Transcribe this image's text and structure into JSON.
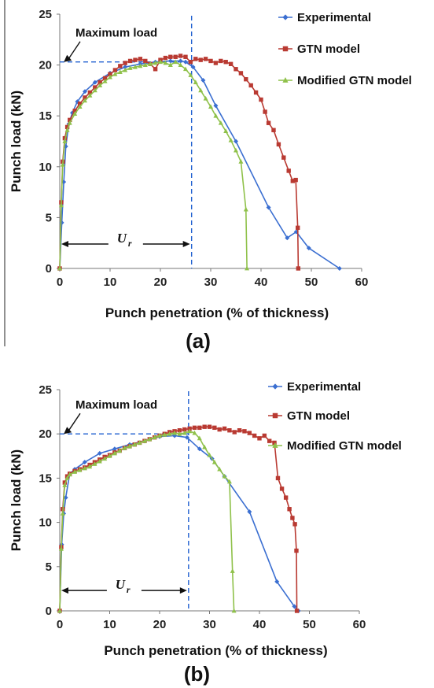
{
  "figure": {
    "left_rule_color": "#222222"
  },
  "chart_data": [
    {
      "type": "line",
      "panel_label": "(a)",
      "xlabel": "Punch penetration (% of thickness)",
      "ylabel": "Punch load (kN)",
      "xlim": [
        0,
        60
      ],
      "ylim": [
        0,
        25
      ],
      "xticks": [
        "0",
        "10",
        "20",
        "30",
        "40",
        "50",
        "60"
      ],
      "yticks": [
        "0",
        "5",
        "10",
        "15",
        "20",
        "25"
      ],
      "annotations": {
        "max_load": {
          "text": "Maximum load",
          "x": 0.5,
          "y": 20.3
        },
        "ur": {
          "symbol": "U",
          "subscript": "r",
          "x_start": 0,
          "x_end": 26.2,
          "y": 2.4
        },
        "guide": {
          "x": 26.2,
          "y": 20.3,
          "color": "#1f5fd0"
        }
      },
      "series": [
        {
          "name": "Experimental",
          "color": "#3b6fd1",
          "marker": "diamond",
          "x": [
            0,
            0.4,
            0.8,
            1.2,
            1.8,
            2.5,
            3.5,
            5,
            7,
            10,
            13,
            16,
            19,
            22,
            24,
            25,
            26.5,
            28.5,
            31,
            35,
            41.5,
            45.2,
            47,
            49.5,
            55.6
          ],
          "y": [
            0,
            4.5,
            8.5,
            12,
            14.2,
            15.3,
            16.4,
            17.4,
            18.3,
            19.2,
            19.8,
            20.1,
            20.3,
            20.4,
            20.4,
            20.3,
            19.8,
            18.5,
            16,
            12.5,
            6,
            3,
            3.6,
            2,
            0
          ]
        },
        {
          "name": "GTN model",
          "color": "#b93a32",
          "marker": "square",
          "x": [
            0,
            0.3,
            0.6,
            1,
            1.5,
            2,
            3,
            4,
            5,
            6,
            7,
            8,
            9,
            10,
            11,
            12,
            13,
            14,
            15,
            16,
            17,
            18,
            19,
            20,
            21,
            22,
            23,
            24,
            25,
            26,
            27,
            28,
            29,
            30,
            31,
            32,
            33,
            34,
            35,
            36,
            37,
            38,
            39,
            40,
            40.8,
            41.5,
            42.5,
            43.5,
            44.5,
            45.5,
            46.3,
            46.9,
            47.3,
            47.4
          ],
          "y": [
            0,
            6.5,
            10.5,
            12.8,
            13.9,
            14.6,
            15.5,
            16.2,
            16.8,
            17.3,
            17.8,
            18.3,
            18.7,
            19.1,
            19.5,
            19.9,
            20.2,
            20.4,
            20.5,
            20.6,
            20.4,
            20.1,
            19.6,
            20.5,
            20.7,
            20.8,
            20.8,
            20.9,
            20.8,
            20.3,
            20.6,
            20.5,
            20.6,
            20.4,
            20.2,
            20.4,
            20.3,
            20.1,
            19.6,
            19.2,
            18.6,
            18.0,
            17.3,
            16.6,
            15.4,
            14.3,
            13.6,
            12.2,
            10.9,
            9.6,
            8.6,
            8.7,
            4.0,
            0
          ]
        },
        {
          "name": "Modified GTN model",
          "color": "#8fc14a",
          "marker": "triangle",
          "x": [
            0,
            0.3,
            0.6,
            1,
            1.5,
            2,
            3,
            4,
            5,
            6,
            7,
            8,
            9,
            10,
            11,
            12,
            13,
            14,
            15,
            16,
            17,
            18,
            19,
            20,
            21,
            22,
            23,
            24,
            25,
            26,
            27,
            28,
            29,
            30,
            31,
            32,
            33,
            34,
            35,
            36,
            37,
            37.2
          ],
          "y": [
            0,
            6.2,
            10.2,
            12.5,
            13.6,
            14.3,
            15.2,
            15.9,
            16.5,
            17.0,
            17.5,
            18.0,
            18.4,
            18.8,
            19.1,
            19.3,
            19.5,
            19.7,
            19.8,
            19.9,
            20.0,
            20.1,
            20.2,
            20.3,
            20.2,
            20.0,
            20.3,
            20.0,
            19.6,
            19.0,
            18.3,
            17.5,
            16.7,
            15.9,
            15.0,
            14.3,
            13.5,
            12.6,
            11.6,
            10.5,
            5.8,
            0
          ]
        }
      ]
    },
    {
      "type": "line",
      "panel_label": "(b)",
      "xlabel": "Punch penetration (% of thickness)",
      "ylabel": "Punch load (kN)",
      "xlim": [
        0,
        60
      ],
      "ylim": [
        0,
        25
      ],
      "xticks": [
        "0",
        "10",
        "20",
        "30",
        "40",
        "50",
        "60"
      ],
      "yticks": [
        "0",
        "5",
        "10",
        "15",
        "20",
        "25"
      ],
      "annotations": {
        "max_load": {
          "text": "Maximum load",
          "x": 0.5,
          "y": 20.0
        },
        "ur": {
          "symbol": "U",
          "subscript": "r",
          "x_start": 0,
          "x_end": 25.8,
          "y": 2.3
        },
        "guide": {
          "x": 25.8,
          "y": 20.0,
          "color": "#1f5fd0"
        }
      },
      "series": [
        {
          "name": "Experimental",
          "color": "#3b6fd1",
          "marker": "diamond",
          "x": [
            0,
            0.4,
            0.8,
            1.2,
            2,
            3,
            5,
            8,
            11,
            14,
            17,
            20,
            23,
            25.5,
            28,
            30.5,
            33,
            38,
            43.5,
            47,
            47.8
          ],
          "y": [
            0,
            7.5,
            11,
            12.8,
            15.5,
            16,
            16.8,
            17.8,
            18.3,
            18.8,
            19.2,
            19.7,
            19.8,
            19.6,
            18.3,
            17.2,
            15.2,
            11.2,
            3.3,
            0.5,
            0
          ]
        },
        {
          "name": "GTN model",
          "color": "#b93a32",
          "marker": "square",
          "x": [
            0,
            0.3,
            0.6,
            1,
            1.5,
            2,
            3,
            4,
            5,
            6,
            7,
            8,
            9,
            10,
            11,
            12,
            13,
            14,
            15,
            16,
            17,
            18,
            19,
            20,
            21,
            22,
            23,
            24,
            25,
            26,
            27,
            28,
            29,
            30,
            31,
            32,
            33,
            34,
            35,
            36,
            37,
            38,
            39,
            40,
            41,
            42,
            43,
            43.7,
            44.5,
            45.3,
            46,
            46.6,
            47.1,
            47.4,
            47.5
          ],
          "y": [
            0,
            7.2,
            11.5,
            14.5,
            15.2,
            15.5,
            15.8,
            16.0,
            16.2,
            16.5,
            16.8,
            17.1,
            17.4,
            17.6,
            17.9,
            18.1,
            18.4,
            18.6,
            18.8,
            19.0,
            19.2,
            19.4,
            19.6,
            19.8,
            20.0,
            20.2,
            20.3,
            20.4,
            20.5,
            20.6,
            20.7,
            20.7,
            20.8,
            20.8,
            20.7,
            20.5,
            20.6,
            20.4,
            20.2,
            20.4,
            20.3,
            20.1,
            19.8,
            19.5,
            19.8,
            19.2,
            19.0,
            15.0,
            13.8,
            12.8,
            11.5,
            10.5,
            9.8,
            6.8,
            0
          ]
        },
        {
          "name": "Modified GTN model",
          "color": "#8fc14a",
          "marker": "triangle",
          "x": [
            0,
            0.3,
            0.6,
            1,
            1.5,
            2,
            3,
            4,
            5,
            6,
            7,
            8,
            9,
            10,
            11,
            12,
            13,
            14,
            15,
            16,
            17,
            18,
            19,
            20,
            21,
            22,
            23,
            24,
            25,
            26,
            27,
            28,
            29,
            30,
            31,
            32,
            33,
            34,
            34.6,
            34.9
          ],
          "y": [
            0,
            7.0,
            11.0,
            14.2,
            15.0,
            15.4,
            15.7,
            15.9,
            16.1,
            16.3,
            16.6,
            16.9,
            17.2,
            17.5,
            17.8,
            18.1,
            18.4,
            18.6,
            18.8,
            19.0,
            19.2,
            19.4,
            19.6,
            19.8,
            19.9,
            20.0,
            20.1,
            20.0,
            20.1,
            20.3,
            20.1,
            19.5,
            18.5,
            17.6,
            16.8,
            16.0,
            15.2,
            14.6,
            4.5,
            0
          ]
        }
      ]
    }
  ]
}
